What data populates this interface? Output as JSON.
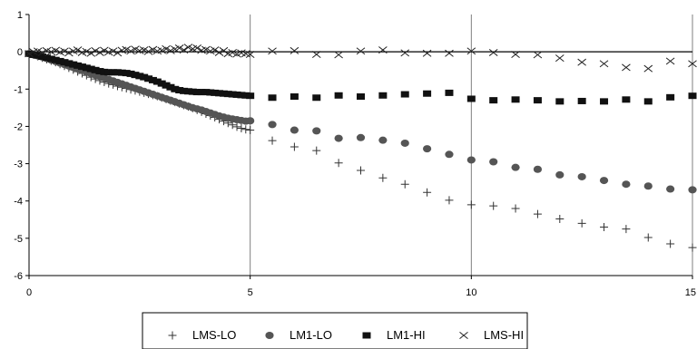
{
  "chart_data": {
    "type": "scatter",
    "title": "",
    "xlabel": "",
    "ylabel": "",
    "xlim": [
      0,
      15
    ],
    "ylim": [
      -6,
      1
    ],
    "x_ticks": [
      0,
      5,
      10,
      15
    ],
    "y_ticks": [
      1,
      0,
      -1,
      -2,
      -3,
      -4,
      -5,
      -6
    ],
    "x_tick_labels": [
      "0",
      "5",
      "10",
      "15"
    ],
    "y_tick_labels": [
      "1",
      "0",
      "-1",
      "-2",
      "-3",
      "-4",
      "-5",
      "-6"
    ],
    "vertical_gridlines": [
      5,
      10,
      15
    ],
    "horizontal_reference_line": 0,
    "legend_position": "bottom",
    "series": [
      {
        "name": "LMS-LO",
        "marker": "plus",
        "color": "#333333",
        "points": [
          [
            0,
            -0.05
          ],
          [
            0.1,
            -0.08
          ],
          [
            0.2,
            -0.12
          ],
          [
            0.3,
            -0.16
          ],
          [
            0.4,
            -0.2
          ],
          [
            0.5,
            -0.24
          ],
          [
            0.6,
            -0.28
          ],
          [
            0.7,
            -0.33
          ],
          [
            0.8,
            -0.38
          ],
          [
            0.9,
            -0.43
          ],
          [
            1,
            -0.48
          ],
          [
            1.1,
            -0.53
          ],
          [
            1.2,
            -0.58
          ],
          [
            1.3,
            -0.63
          ],
          [
            1.4,
            -0.68
          ],
          [
            1.5,
            -0.73
          ],
          [
            1.6,
            -0.77
          ],
          [
            1.7,
            -0.81
          ],
          [
            1.8,
            -0.85
          ],
          [
            1.9,
            -0.88
          ],
          [
            2,
            -0.92
          ],
          [
            2.1,
            -0.95
          ],
          [
            2.2,
            -0.98
          ],
          [
            2.3,
            -1.01
          ],
          [
            2.4,
            -1.04
          ],
          [
            2.5,
            -1.07
          ],
          [
            2.6,
            -1.1
          ],
          [
            2.7,
            -1.13
          ],
          [
            2.8,
            -1.16
          ],
          [
            2.9,
            -1.19
          ],
          [
            3,
            -1.23
          ],
          [
            3.1,
            -1.27
          ],
          [
            3.2,
            -1.31
          ],
          [
            3.3,
            -1.35
          ],
          [
            3.4,
            -1.39
          ],
          [
            3.5,
            -1.43
          ],
          [
            3.6,
            -1.47
          ],
          [
            3.7,
            -1.51
          ],
          [
            3.8,
            -1.56
          ],
          [
            3.9,
            -1.61
          ],
          [
            4,
            -1.66
          ],
          [
            4.1,
            -1.71
          ],
          [
            4.2,
            -1.76
          ],
          [
            4.3,
            -1.81
          ],
          [
            4.4,
            -1.86
          ],
          [
            4.5,
            -1.91
          ],
          [
            4.6,
            -1.96
          ],
          [
            4.7,
            -2.01
          ],
          [
            4.8,
            -2.05
          ],
          [
            4.9,
            -2.08
          ],
          [
            5,
            -2.1
          ],
          [
            5.5,
            -2.38
          ],
          [
            6,
            -2.55
          ],
          [
            6.5,
            -2.65
          ],
          [
            7,
            -2.98
          ],
          [
            7.5,
            -3.18
          ],
          [
            8,
            -3.38
          ],
          [
            8.5,
            -3.55
          ],
          [
            9,
            -3.77
          ],
          [
            9.5,
            -3.98
          ],
          [
            10,
            -4.1
          ],
          [
            10.5,
            -4.13
          ],
          [
            11,
            -4.2
          ],
          [
            11.5,
            -4.35
          ],
          [
            12,
            -4.48
          ],
          [
            12.5,
            -4.6
          ],
          [
            13,
            -4.7
          ],
          [
            13.5,
            -4.75
          ],
          [
            14,
            -4.98
          ],
          [
            14.5,
            -5.15
          ],
          [
            15,
            -5.25
          ]
        ]
      },
      {
        "name": "LM1-LO",
        "marker": "circle",
        "color": "#555555",
        "points": [
          [
            0,
            -0.05
          ],
          [
            0.1,
            -0.08
          ],
          [
            0.2,
            -0.11
          ],
          [
            0.3,
            -0.14
          ],
          [
            0.4,
            -0.18
          ],
          [
            0.5,
            -0.22
          ],
          [
            0.6,
            -0.26
          ],
          [
            0.7,
            -0.3
          ],
          [
            0.8,
            -0.34
          ],
          [
            0.9,
            -0.38
          ],
          [
            1,
            -0.42
          ],
          [
            1.1,
            -0.46
          ],
          [
            1.2,
            -0.5
          ],
          [
            1.3,
            -0.54
          ],
          [
            1.4,
            -0.58
          ],
          [
            1.5,
            -0.62
          ],
          [
            1.6,
            -0.66
          ],
          [
            1.7,
            -0.7
          ],
          [
            1.8,
            -0.74
          ],
          [
            1.9,
            -0.78
          ],
          [
            2,
            -0.82
          ],
          [
            2.1,
            -0.86
          ],
          [
            2.2,
            -0.9
          ],
          [
            2.3,
            -0.94
          ],
          [
            2.4,
            -0.98
          ],
          [
            2.5,
            -1.02
          ],
          [
            2.6,
            -1.06
          ],
          [
            2.7,
            -1.1
          ],
          [
            2.8,
            -1.14
          ],
          [
            2.9,
            -1.18
          ],
          [
            3,
            -1.22
          ],
          [
            3.1,
            -1.26
          ],
          [
            3.2,
            -1.3
          ],
          [
            3.3,
            -1.34
          ],
          [
            3.4,
            -1.38
          ],
          [
            3.5,
            -1.42
          ],
          [
            3.6,
            -1.46
          ],
          [
            3.7,
            -1.5
          ],
          [
            3.8,
            -1.53
          ],
          [
            3.9,
            -1.56
          ],
          [
            4,
            -1.6
          ],
          [
            4.1,
            -1.64
          ],
          [
            4.2,
            -1.68
          ],
          [
            4.3,
            -1.72
          ],
          [
            4.4,
            -1.75
          ],
          [
            4.5,
            -1.78
          ],
          [
            4.6,
            -1.8
          ],
          [
            4.7,
            -1.82
          ],
          [
            4.8,
            -1.84
          ],
          [
            4.9,
            -1.86
          ],
          [
            5,
            -1.85
          ],
          [
            5.5,
            -1.95
          ],
          [
            6,
            -2.1
          ],
          [
            6.5,
            -2.12
          ],
          [
            7,
            -2.32
          ],
          [
            7.5,
            -2.3
          ],
          [
            8,
            -2.37
          ],
          [
            8.5,
            -2.45
          ],
          [
            9,
            -2.6
          ],
          [
            9.5,
            -2.75
          ],
          [
            10,
            -2.9
          ],
          [
            10.5,
            -2.95
          ],
          [
            11,
            -3.1
          ],
          [
            11.5,
            -3.15
          ],
          [
            12,
            -3.3
          ],
          [
            12.5,
            -3.35
          ],
          [
            13,
            -3.45
          ],
          [
            13.5,
            -3.55
          ],
          [
            14,
            -3.6
          ],
          [
            14.5,
            -3.68
          ],
          [
            15,
            -3.7
          ]
        ]
      },
      {
        "name": "LM1-HI",
        "marker": "square",
        "color": "#111111",
        "points": [
          [
            0,
            -0.05
          ],
          [
            0.1,
            -0.08
          ],
          [
            0.2,
            -0.1
          ],
          [
            0.3,
            -0.13
          ],
          [
            0.4,
            -0.16
          ],
          [
            0.5,
            -0.19
          ],
          [
            0.6,
            -0.22
          ],
          [
            0.7,
            -0.25
          ],
          [
            0.8,
            -0.28
          ],
          [
            0.9,
            -0.31
          ],
          [
            1,
            -0.34
          ],
          [
            1.1,
            -0.37
          ],
          [
            1.2,
            -0.4
          ],
          [
            1.3,
            -0.43
          ],
          [
            1.4,
            -0.46
          ],
          [
            1.5,
            -0.49
          ],
          [
            1.6,
            -0.52
          ],
          [
            1.7,
            -0.54
          ],
          [
            1.8,
            -0.55
          ],
          [
            1.9,
            -0.55
          ],
          [
            2,
            -0.55
          ],
          [
            2.1,
            -0.56
          ],
          [
            2.2,
            -0.57
          ],
          [
            2.3,
            -0.59
          ],
          [
            2.4,
            -0.62
          ],
          [
            2.5,
            -0.65
          ],
          [
            2.6,
            -0.68
          ],
          [
            2.7,
            -0.72
          ],
          [
            2.8,
            -0.76
          ],
          [
            2.9,
            -0.8
          ],
          [
            3,
            -0.85
          ],
          [
            3.1,
            -0.9
          ],
          [
            3.2,
            -0.95
          ],
          [
            3.3,
            -1
          ],
          [
            3.4,
            -1.03
          ],
          [
            3.5,
            -1.05
          ],
          [
            3.6,
            -1.06
          ],
          [
            3.7,
            -1.07
          ],
          [
            3.8,
            -1.08
          ],
          [
            3.9,
            -1.08
          ],
          [
            4,
            -1.08
          ],
          [
            4.1,
            -1.09
          ],
          [
            4.2,
            -1.1
          ],
          [
            4.3,
            -1.11
          ],
          [
            4.4,
            -1.12
          ],
          [
            4.5,
            -1.13
          ],
          [
            4.6,
            -1.14
          ],
          [
            4.7,
            -1.15
          ],
          [
            4.8,
            -1.16
          ],
          [
            4.9,
            -1.17
          ],
          [
            5,
            -1.18
          ],
          [
            5.5,
            -1.23
          ],
          [
            6,
            -1.2
          ],
          [
            6.5,
            -1.23
          ],
          [
            7,
            -1.17
          ],
          [
            7.5,
            -1.2
          ],
          [
            8,
            -1.17
          ],
          [
            8.5,
            -1.14
          ],
          [
            9,
            -1.12
          ],
          [
            9.5,
            -1.1
          ],
          [
            10,
            -1.26
          ],
          [
            10.5,
            -1.3
          ],
          [
            11,
            -1.28
          ],
          [
            11.5,
            -1.3
          ],
          [
            12,
            -1.33
          ],
          [
            12.5,
            -1.32
          ],
          [
            13,
            -1.33
          ],
          [
            13.5,
            -1.28
          ],
          [
            14,
            -1.33
          ],
          [
            14.5,
            -1.22
          ],
          [
            15,
            -1.18
          ]
        ]
      },
      {
        "name": "LMS-HI",
        "marker": "x",
        "color": "#222222",
        "points": [
          [
            0,
            -0.05
          ],
          [
            0.1,
            0
          ],
          [
            0.2,
            0.02
          ],
          [
            0.3,
            -0.02
          ],
          [
            0.4,
            0.03
          ],
          [
            0.5,
            0
          ],
          [
            0.6,
            0.04
          ],
          [
            0.7,
            -0.01
          ],
          [
            0.8,
            0.02
          ],
          [
            0.9,
            -0.03
          ],
          [
            1,
            0.02
          ],
          [
            1.1,
            0.05
          ],
          [
            1.2,
            -0.02
          ],
          [
            1.3,
            0.01
          ],
          [
            1.4,
            -0.04
          ],
          [
            1.5,
            0.03
          ],
          [
            1.6,
            -0.02
          ],
          [
            1.7,
            0.04
          ],
          [
            1.8,
            -0.01
          ],
          [
            1.9,
            0.02
          ],
          [
            2,
            -0.03
          ],
          [
            2.1,
            0.04
          ],
          [
            2.2,
            0.06
          ],
          [
            2.3,
            0.02
          ],
          [
            2.4,
            0.07
          ],
          [
            2.5,
            0.03
          ],
          [
            2.6,
            0.05
          ],
          [
            2.7,
            0.01
          ],
          [
            2.8,
            0.06
          ],
          [
            2.9,
            0.02
          ],
          [
            3,
            0.04
          ],
          [
            3.1,
            0.08
          ],
          [
            3.2,
            0.03
          ],
          [
            3.3,
            0.07
          ],
          [
            3.4,
            0.1
          ],
          [
            3.5,
            0.05
          ],
          [
            3.6,
            0.12
          ],
          [
            3.7,
            0.08
          ],
          [
            3.8,
            0.1
          ],
          [
            3.9,
            0.04
          ],
          [
            4,
            0.06
          ],
          [
            4.1,
            0.02
          ],
          [
            4.2,
            0.05
          ],
          [
            4.3,
            -0.02
          ],
          [
            4.4,
            0.03
          ],
          [
            4.5,
            -0.05
          ],
          [
            4.6,
            -0.02
          ],
          [
            4.7,
            -0.06
          ],
          [
            4.8,
            -0.03
          ],
          [
            4.9,
            -0.05
          ],
          [
            5,
            -0.07
          ],
          [
            5.5,
            0.02
          ],
          [
            6,
            0.03
          ],
          [
            6.5,
            -0.07
          ],
          [
            7,
            -0.08
          ],
          [
            7.5,
            0.02
          ],
          [
            8,
            0.05
          ],
          [
            8.5,
            -0.03
          ],
          [
            9,
            -0.04
          ],
          [
            9.5,
            -0.04
          ],
          [
            10,
            0.02
          ],
          [
            10.5,
            -0.02
          ],
          [
            11,
            -0.07
          ],
          [
            11.5,
            -0.08
          ],
          [
            12,
            -0.17
          ],
          [
            12.5,
            -0.28
          ],
          [
            13,
            -0.32
          ],
          [
            13.5,
            -0.42
          ],
          [
            14,
            -0.45
          ],
          [
            14.5,
            -0.25
          ],
          [
            15,
            -0.32
          ]
        ]
      }
    ]
  }
}
